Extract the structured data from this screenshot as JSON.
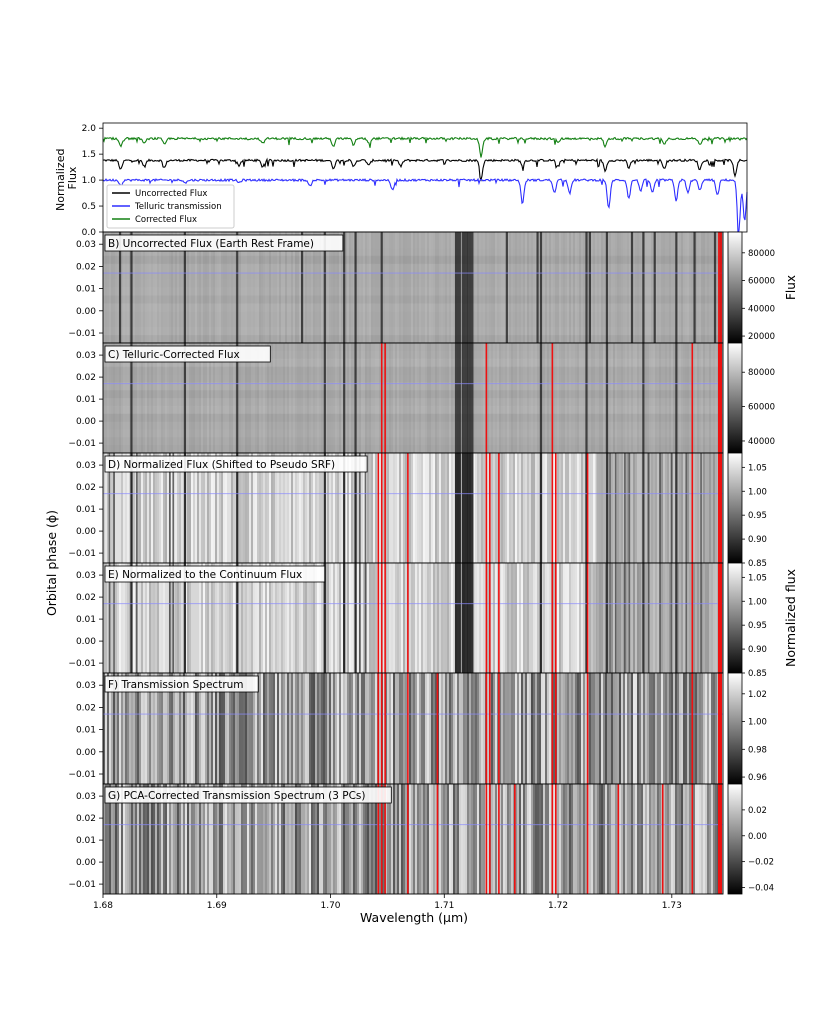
{
  "chart_data": [
    {
      "panel": "A",
      "type": "line",
      "ylabel": "Normalized\nFlux",
      "xlim": [
        1.68,
        1.7345
      ],
      "ylim": [
        0.0,
        2.1
      ],
      "yticks": [
        "0.0",
        "0.5",
        "1.0",
        "1.5",
        "2.0"
      ],
      "legend": {
        "placement": "lower-left",
        "entries": [
          "Uncorrected Flux",
          "Telluric transmission",
          "Corrected Flux"
        ]
      },
      "series": [
        {
          "name": "Uncorrected Flux",
          "color": "#000000",
          "baseline": 1.38,
          "dips": [
            [
              1.6815,
              0.18
            ],
            [
              1.6835,
              0.12
            ],
            [
              1.6852,
              0.14
            ],
            [
              1.6915,
              0.1
            ],
            [
              1.6935,
              0.12
            ],
            [
              1.6995,
              0.15
            ],
            [
              1.7012,
              0.12
            ],
            [
              1.7025,
              0.1
            ],
            [
              1.7052,
              0.12
            ],
            [
              1.712,
              0.35
            ],
            [
              1.7155,
              0.1
            ],
            [
              1.7185,
              0.12
            ],
            [
              1.7225,
              0.2
            ],
            [
              1.7245,
              0.15
            ],
            [
              1.7275,
              0.15
            ],
            [
              1.7305,
              0.18
            ],
            [
              1.7335,
              0.3
            ]
          ]
        },
        {
          "name": "Telluric transmission",
          "color": "#2e2eff",
          "baseline": 1.0,
          "dips": [
            [
              1.6815,
              0.1
            ],
            [
              1.687,
              0.05
            ],
            [
              1.6915,
              0.05
            ],
            [
              1.6975,
              0.12
            ],
            [
              1.7045,
              0.2
            ],
            [
              1.7155,
              0.45
            ],
            [
              1.7182,
              0.25
            ],
            [
              1.7195,
              0.25
            ],
            [
              1.7228,
              0.55
            ],
            [
              1.7245,
              0.35
            ],
            [
              1.7255,
              0.2
            ],
            [
              1.7265,
              0.25
            ],
            [
              1.7285,
              0.4
            ],
            [
              1.7295,
              0.25
            ],
            [
              1.7305,
              0.2
            ],
            [
              1.732,
              0.3
            ],
            [
              1.7338,
              1.0
            ],
            [
              1.7343,
              0.8
            ]
          ]
        },
        {
          "name": "Corrected Flux",
          "color": "#138013",
          "baseline": 1.8,
          "dips": [
            [
              1.6815,
              0.15
            ],
            [
              1.6835,
              0.1
            ],
            [
              1.6852,
              0.12
            ],
            [
              1.6935,
              0.1
            ],
            [
              1.6995,
              0.15
            ],
            [
              1.7012,
              0.12
            ],
            [
              1.7025,
              0.08
            ],
            [
              1.712,
              0.35
            ],
            [
              1.7185,
              0.08
            ],
            [
              1.7225,
              0.15
            ],
            [
              1.7275,
              0.12
            ],
            [
              1.7305,
              0.12
            ]
          ]
        }
      ]
    },
    {
      "panel": "B",
      "type": "heatmap",
      "title": "B) Uncorrected Flux (Earth Rest Frame)",
      "colorbar": {
        "label": "Flux",
        "ticks": [
          "20000",
          "40000",
          "60000",
          "80000"
        ],
        "range": [
          15000,
          95000
        ]
      }
    },
    {
      "panel": "C",
      "type": "heatmap",
      "title": "C) Telluric-Corrected Flux",
      "colorbar": {
        "ticks": [
          "40000",
          "60000",
          "80000"
        ],
        "range": [
          33000,
          97000
        ]
      }
    },
    {
      "panel": "D",
      "type": "heatmap",
      "title": "D) Normalized Flux (Shifted to Pseudo SRF)",
      "colorbar": {
        "ticks": [
          "0.85",
          "0.90",
          "0.95",
          "1.00",
          "1.05"
        ],
        "range": [
          0.85,
          1.08
        ]
      }
    },
    {
      "panel": "E",
      "type": "heatmap",
      "title": "E) Normalized to the Continuum Flux",
      "colorbar": {
        "ticks": [
          "0.85",
          "0.90",
          "0.95",
          "1.00",
          "1.05"
        ],
        "range": [
          0.85,
          1.08
        ]
      }
    },
    {
      "panel": "F",
      "type": "heatmap",
      "title": "F) Transmission Spectrum",
      "colorbar": {
        "ticks": [
          "0.96",
          "0.98",
          "1.00",
          "1.02"
        ],
        "range": [
          0.955,
          1.035
        ]
      }
    },
    {
      "panel": "G",
      "type": "heatmap",
      "title": "G) PCA-Corrected Transmission Spectrum (3 PCs)",
      "colorbar": {
        "ticks": [
          "−0.04",
          "−0.02",
          "0.00",
          "0.02"
        ],
        "range": [
          -0.045,
          0.04
        ]
      }
    }
  ],
  "axes": {
    "xlabel": "Wavelength (μm)",
    "xticks": [
      1.68,
      1.69,
      1.7,
      1.71,
      1.72,
      1.73
    ],
    "xtick_labels": [
      "1.68",
      "1.69",
      "1.70",
      "1.71",
      "1.72",
      "1.73"
    ],
    "xlim": [
      1.68,
      1.7345
    ],
    "ylabel": "Orbital phase (ϕ)",
    "yticks": [
      -0.01,
      0.0,
      0.01,
      0.02,
      0.03
    ],
    "ytick_labels": [
      "−0.01",
      "0.00",
      "0.01",
      "0.02",
      "0.03"
    ],
    "ylim": [
      -0.0145,
      0.0355
    ],
    "right_label": "Normalized flux",
    "marker_line_phase": 0.017
  },
  "colors": {
    "mask": "#ee1111",
    "phase_line": "#8a8aff",
    "frame": "#000000"
  },
  "masked_wavelengths": {
    "C": [
      1.7045,
      1.7048,
      1.7137,
      1.7195,
      1.7318
    ],
    "D": [
      1.7042,
      1.7045,
      1.7048,
      1.7068,
      1.7137,
      1.714,
      1.7148,
      1.7195,
      1.7198,
      1.7226,
      1.7318
    ],
    "E": [
      1.7042,
      1.7045,
      1.7048,
      1.7068,
      1.7137,
      1.714,
      1.7148,
      1.7195,
      1.7198,
      1.7226,
      1.7318
    ],
    "F": [
      1.7042,
      1.7045,
      1.7048,
      1.7068,
      1.7094,
      1.7137,
      1.714,
      1.7148,
      1.7195,
      1.7198,
      1.7226,
      1.7318
    ],
    "G": [
      1.7042,
      1.7045,
      1.7048,
      1.7068,
      1.7094,
      1.7137,
      1.714,
      1.7148,
      1.7162,
      1.7195,
      1.7198,
      1.7226,
      1.7253,
      1.7292,
      1.7318
    ]
  },
  "absorption_lines": {
    "stellar": [
      1.6825,
      1.6872,
      1.6918,
      1.6995,
      1.7012,
      1.7022,
      1.7112,
      1.7118,
      1.7123,
      1.7185,
      1.7225,
      1.7243,
      1.7275,
      1.7304
    ],
    "telluric": [
      1.6815,
      1.6975,
      1.7045,
      1.7155,
      1.7182,
      1.7228,
      1.7265,
      1.7285,
      1.732,
      1.7338,
      1.7343
    ]
  }
}
